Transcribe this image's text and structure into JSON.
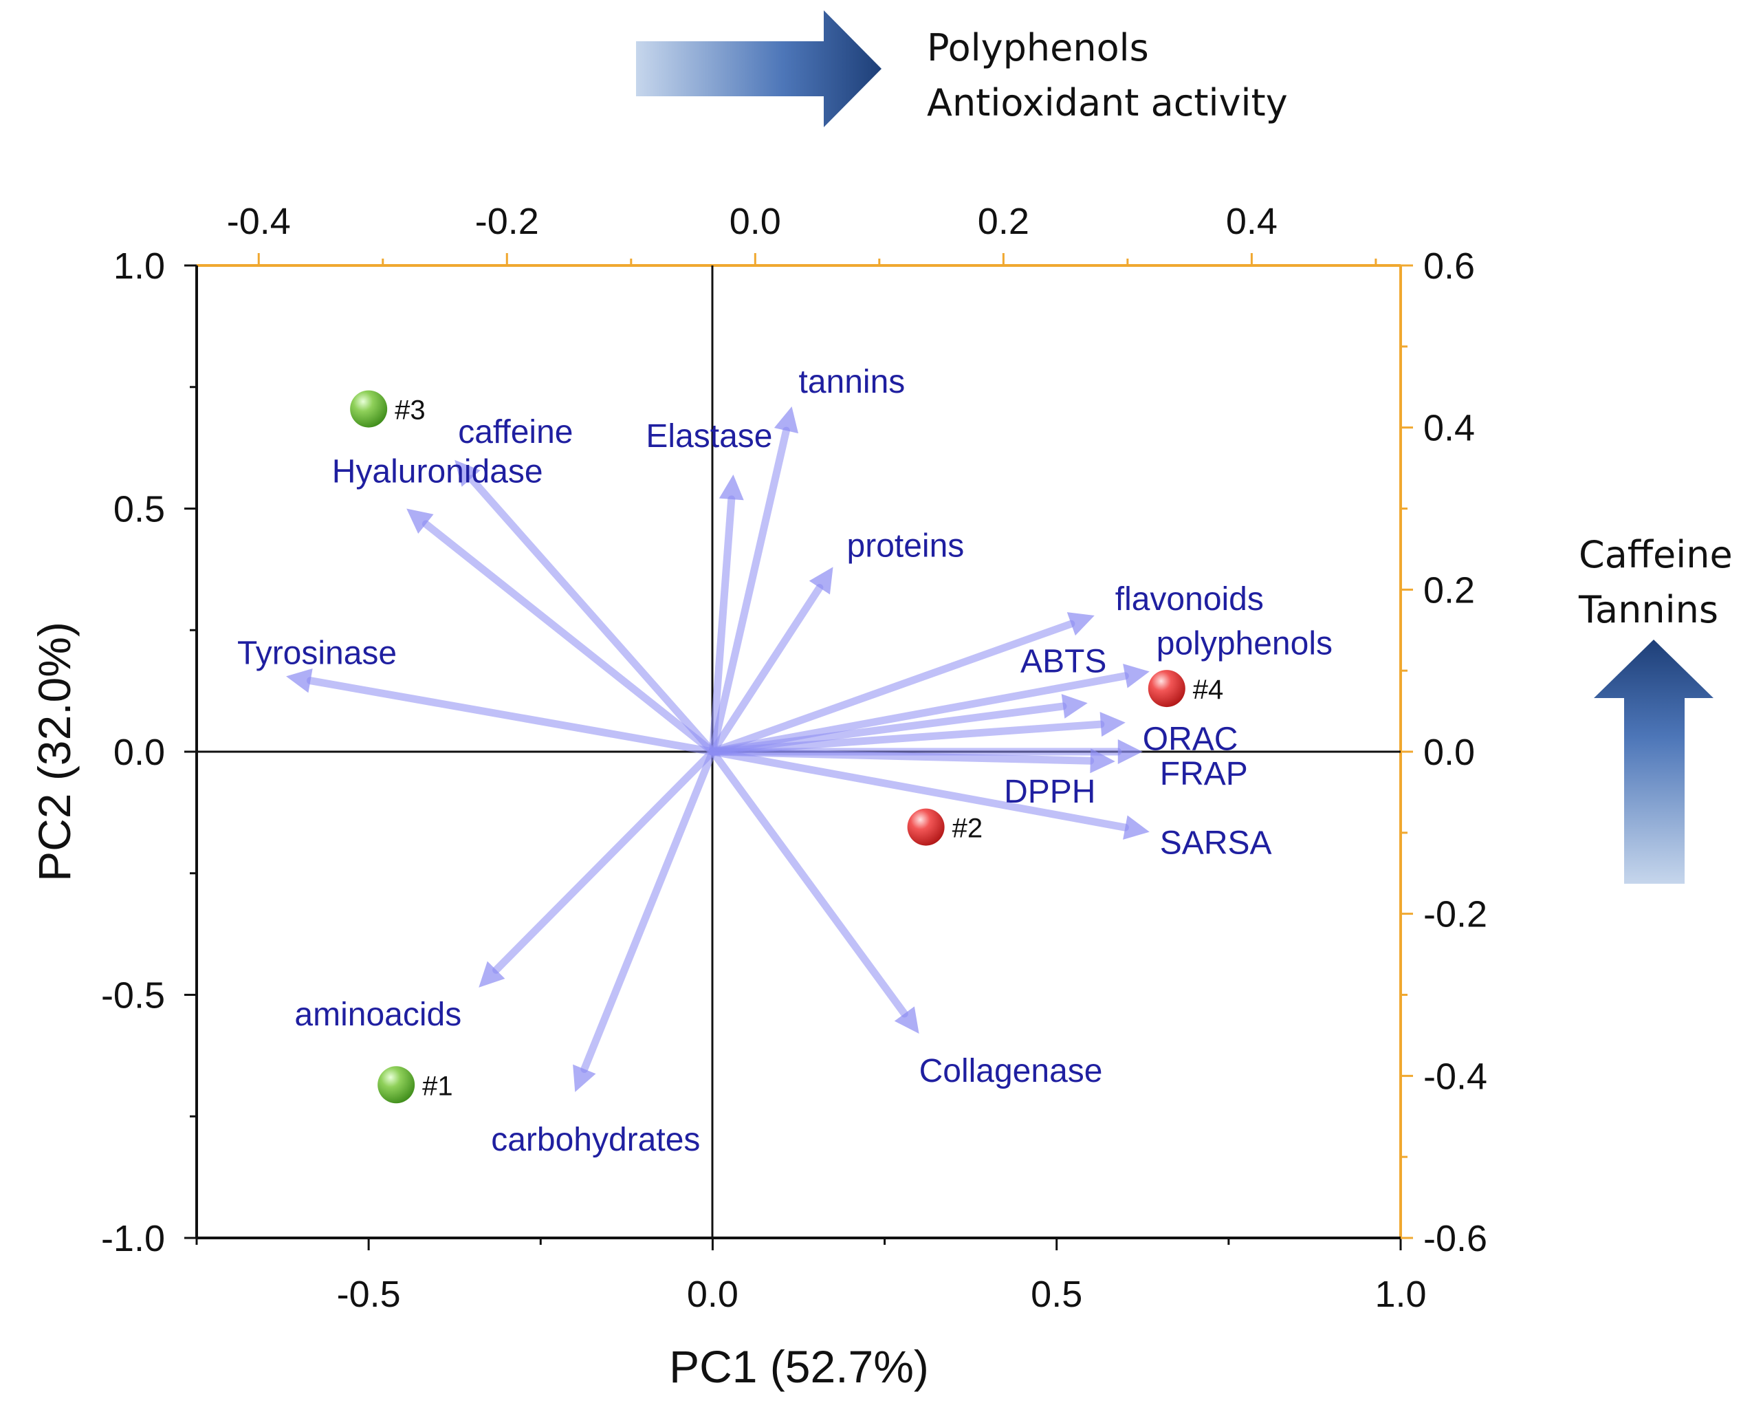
{
  "chart_data": {
    "type": "scatter",
    "subtype": "pca-biplot",
    "xlabel": "PC1 (52.7%)",
    "ylabel": "PC2 (32.0%)",
    "xlim": [
      -0.75,
      1.0
    ],
    "ylim": [
      -1.0,
      1.0
    ],
    "x_ticks": [
      "-0.5",
      "0.0",
      "0.5",
      "1.0"
    ],
    "y_ticks": [
      "1.0",
      "0.5",
      "0.0",
      "-0.5",
      "-1.0"
    ],
    "top_axis": {
      "lim": [
        -0.45,
        0.52
      ],
      "ticks": [
        "-0.4",
        "-0.2",
        "0.0",
        "0.2",
        "0.4"
      ],
      "color": "#f0a830"
    },
    "right_axis": {
      "lim": [
        -0.6,
        0.6
      ],
      "ticks": [
        "0.6",
        "0.4",
        "0.2",
        "0.0",
        "-0.2",
        "-0.4",
        "-0.6"
      ],
      "color": "#f0a830"
    },
    "loading_color": "#1f1fa0",
    "loadings": [
      {
        "name": "tannins",
        "x": 0.115,
        "y": 0.71
      },
      {
        "name": "Elastase",
        "x": 0.03,
        "y": 0.57
      },
      {
        "name": "caffeine",
        "x": -0.375,
        "y": 0.6
      },
      {
        "name": "Hyaluronidase",
        "x": -0.445,
        "y": 0.5
      },
      {
        "name": "proteins",
        "x": 0.175,
        "y": 0.38
      },
      {
        "name": "flavonoids",
        "x": 0.555,
        "y": 0.28
      },
      {
        "name": "Tyrosinase",
        "x": -0.62,
        "y": 0.155
      },
      {
        "name": "polyphenols",
        "x": 0.635,
        "y": 0.165
      },
      {
        "name": "ABTS",
        "x": 0.545,
        "y": 0.1
      },
      {
        "name": "ORAC",
        "x": 0.6,
        "y": 0.06
      },
      {
        "name": "FRAP",
        "x": 0.625,
        "y": 0.0
      },
      {
        "name": "DPPH",
        "x": 0.585,
        "y": -0.02
      },
      {
        "name": "SARSA",
        "x": 0.635,
        "y": -0.165
      },
      {
        "name": "aminoacids",
        "x": -0.34,
        "y": -0.485
      },
      {
        "name": "carbohydrates",
        "x": -0.2,
        "y": -0.7
      },
      {
        "name": "Collagenase",
        "x": 0.3,
        "y": -0.58
      }
    ],
    "samples": [
      {
        "label": "#3",
        "x": -0.5,
        "y": 0.705,
        "color": "green"
      },
      {
        "label": "#4",
        "x": 0.66,
        "y": 0.13,
        "color": "red"
      },
      {
        "label": "#2",
        "x": 0.31,
        "y": -0.155,
        "color": "red"
      },
      {
        "label": "#1",
        "x": -0.46,
        "y": -0.685,
        "color": "green"
      }
    ],
    "annotations": {
      "horizontal_arrow": [
        "Polyphenols",
        "Antioxidant activity"
      ],
      "vertical_arrow": [
        "Caffeine",
        "Tannins"
      ]
    }
  }
}
